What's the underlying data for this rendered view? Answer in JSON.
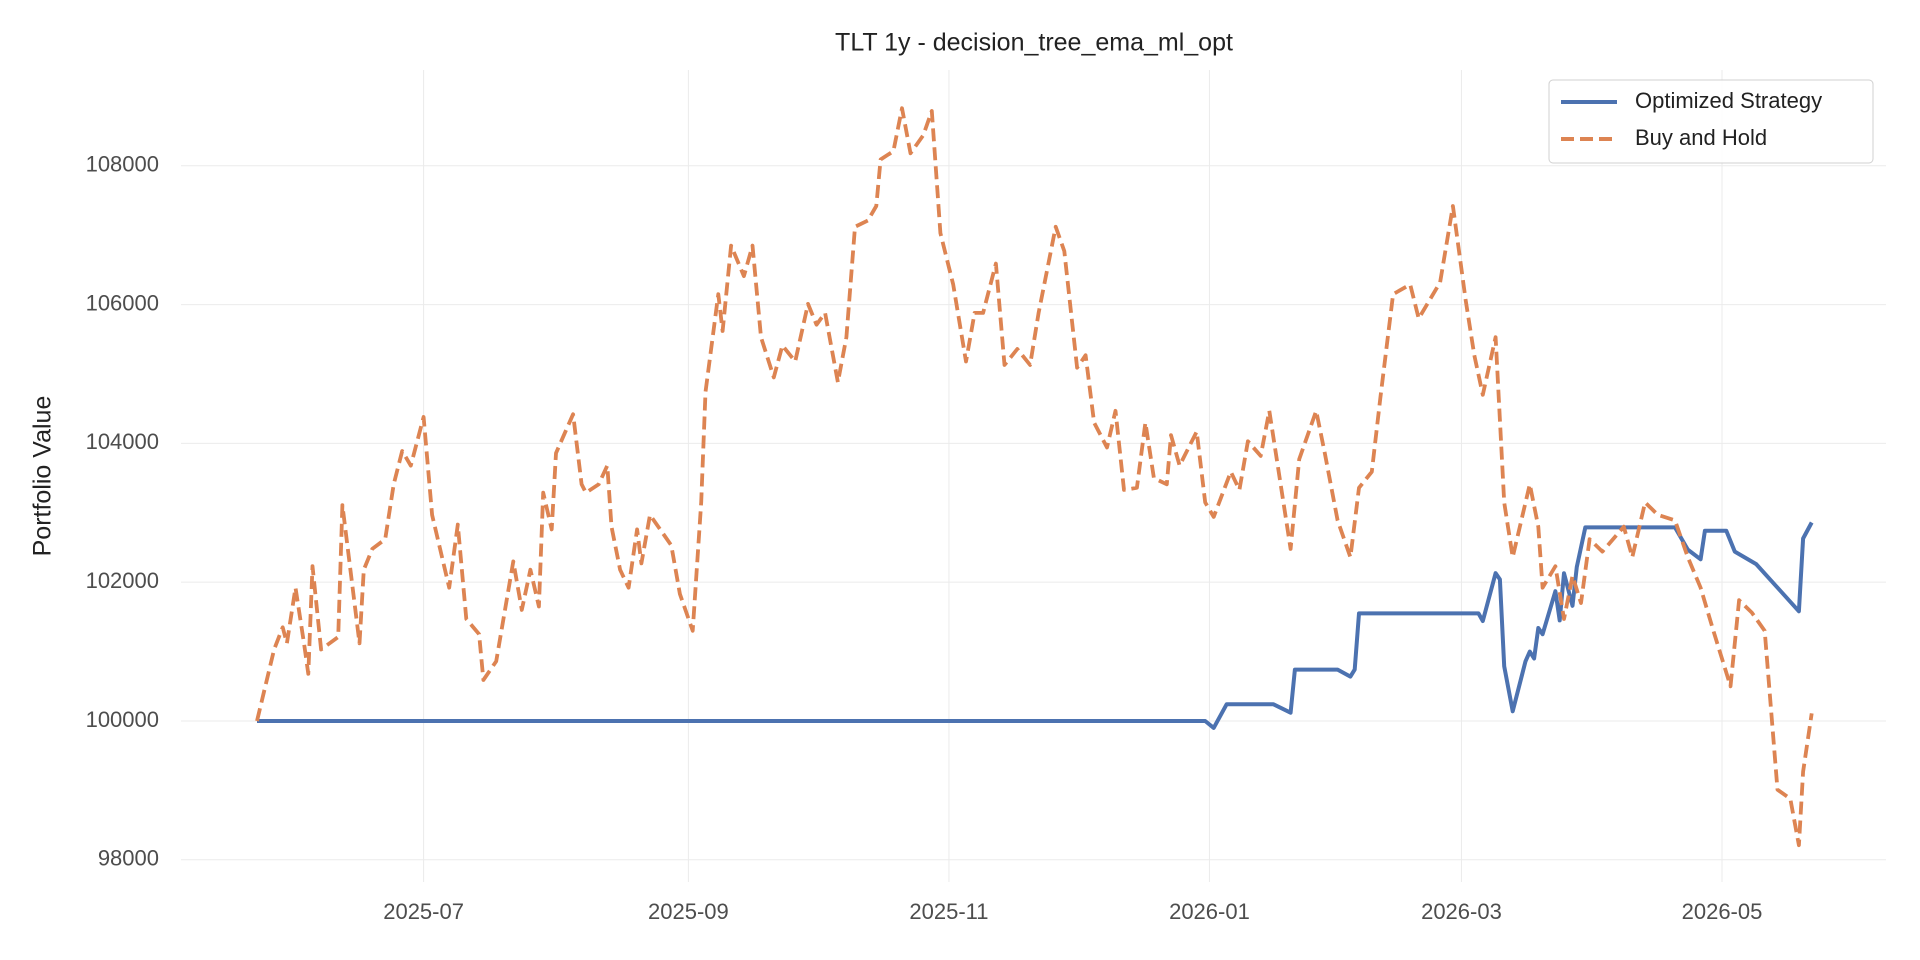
{
  "chart_data": {
    "type": "line",
    "title": "TLT 1y - decision_tree_ema_ml_opt",
    "ylabel": "Portfolio Value",
    "xlim": [
      -17.8,
      381.4
    ],
    "ylim": [
      97680,
      109380
    ],
    "xticks": [
      {
        "value": 39,
        "label": "2025-07"
      },
      {
        "value": 101,
        "label": "2025-09"
      },
      {
        "value": 162,
        "label": "2025-11"
      },
      {
        "value": 223,
        "label": "2026-01"
      },
      {
        "value": 282,
        "label": "2026-03"
      },
      {
        "value": 343,
        "label": "2026-05"
      }
    ],
    "yticks": [
      98000,
      100000,
      102000,
      104000,
      106000,
      108000
    ],
    "grid": true,
    "legend": "upper right",
    "series": [
      {
        "name": "Optimized Strategy",
        "color": "#4c72b0",
        "dash": "solid",
        "x": [
          0,
          222,
          224,
          227,
          238,
          242,
          243,
          253,
          256,
          257,
          258,
          286,
          287,
          290,
          291,
          292,
          294,
          297,
          298,
          299,
          300,
          301,
          304,
          305,
          306,
          308,
          309,
          311,
          332,
          335,
          338,
          339,
          344,
          346,
          351,
          361,
          362,
          364
        ],
        "values": [
          100000,
          100000,
          99900,
          100240,
          100240,
          100120,
          100740,
          100740,
          100640,
          100740,
          101550,
          101550,
          101440,
          102130,
          102040,
          100790,
          100140,
          100860,
          101000,
          100900,
          101340,
          101250,
          101870,
          101450,
          102130,
          101660,
          102220,
          102790,
          102790,
          102470,
          102330,
          102740,
          102740,
          102440,
          102260,
          101580,
          102630,
          102860
        ]
      },
      {
        "name": "Buy and Hold",
        "color": "#dd8452",
        "dash": "dashed",
        "x": [
          0,
          4,
          6,
          7,
          9,
          11,
          12,
          13,
          15,
          19,
          20,
          24,
          25,
          27,
          30,
          32,
          34,
          36,
          39,
          41,
          45,
          47,
          49,
          52,
          53,
          56,
          60,
          62,
          64,
          66,
          67,
          69,
          70,
          74,
          76,
          77,
          80,
          82,
          83,
          85,
          87,
          89,
          90,
          92,
          97,
          99,
          102,
          104,
          105,
          108,
          109,
          111,
          114,
          116,
          118,
          121,
          123,
          126,
          129,
          131,
          133,
          136,
          138,
          140,
          143,
          145,
          146,
          149,
          151,
          153,
          156,
          158,
          160,
          163,
          166,
          168,
          170,
          173,
          175,
          178,
          181,
          183,
          187,
          189,
          192,
          194,
          196,
          199,
          201,
          203,
          206,
          208,
          210,
          213,
          214,
          216,
          220,
          222,
          224,
          228,
          230,
          232,
          235,
          237,
          242,
          244,
          248,
          250,
          253,
          256,
          258,
          261,
          263,
          266,
          270,
          272,
          277,
          280,
          283,
          285,
          287,
          290,
          292,
          294,
          298,
          300,
          301,
          304,
          306,
          308,
          310,
          312,
          315,
          320,
          322,
          325,
          328,
          332,
          335,
          338,
          341,
          345,
          347,
          350,
          353,
          356,
          359,
          361,
          362,
          364
        ],
        "values": [
          100000,
          101030,
          101350,
          101120,
          101920,
          101120,
          100680,
          102230,
          101030,
          101210,
          103110,
          101120,
          102180,
          102480,
          102620,
          103410,
          103890,
          103680,
          104380,
          102970,
          101920,
          102830,
          101470,
          101250,
          100590,
          100860,
          102300,
          101600,
          102180,
          101650,
          103290,
          102760,
          103860,
          104420,
          103410,
          103290,
          103410,
          103680,
          102800,
          102180,
          101920,
          102760,
          102270,
          102970,
          102530,
          101830,
          101300,
          103150,
          104740,
          106150,
          105620,
          106850,
          106410,
          106850,
          105530,
          104950,
          105410,
          105180,
          106010,
          105710,
          105880,
          104880,
          105530,
          107120,
          107210,
          107420,
          108090,
          108210,
          108830,
          108180,
          108440,
          108790,
          107030,
          106290,
          105180,
          105880,
          105880,
          106590,
          105130,
          105360,
          105130,
          105880,
          107120,
          106770,
          105090,
          105270,
          104300,
          103940,
          104470,
          103330,
          103360,
          104300,
          103500,
          103410,
          104120,
          103680,
          104170,
          103150,
          102940,
          103590,
          103330,
          104030,
          103820,
          104470,
          102480,
          103770,
          104470,
          103860,
          102890,
          102360,
          103360,
          103590,
          104650,
          106150,
          106290,
          105800,
          106320,
          107420,
          106060,
          105270,
          104700,
          105530,
          103150,
          102360,
          103410,
          102800,
          101920,
          102230,
          101470,
          102090,
          101700,
          102620,
          102440,
          102800,
          102360,
          103150,
          102970,
          102890,
          102360,
          101920,
          101300,
          100500,
          101740,
          101560,
          101300,
          99010,
          98880,
          98210,
          99270,
          100110
        ]
      }
    ]
  }
}
